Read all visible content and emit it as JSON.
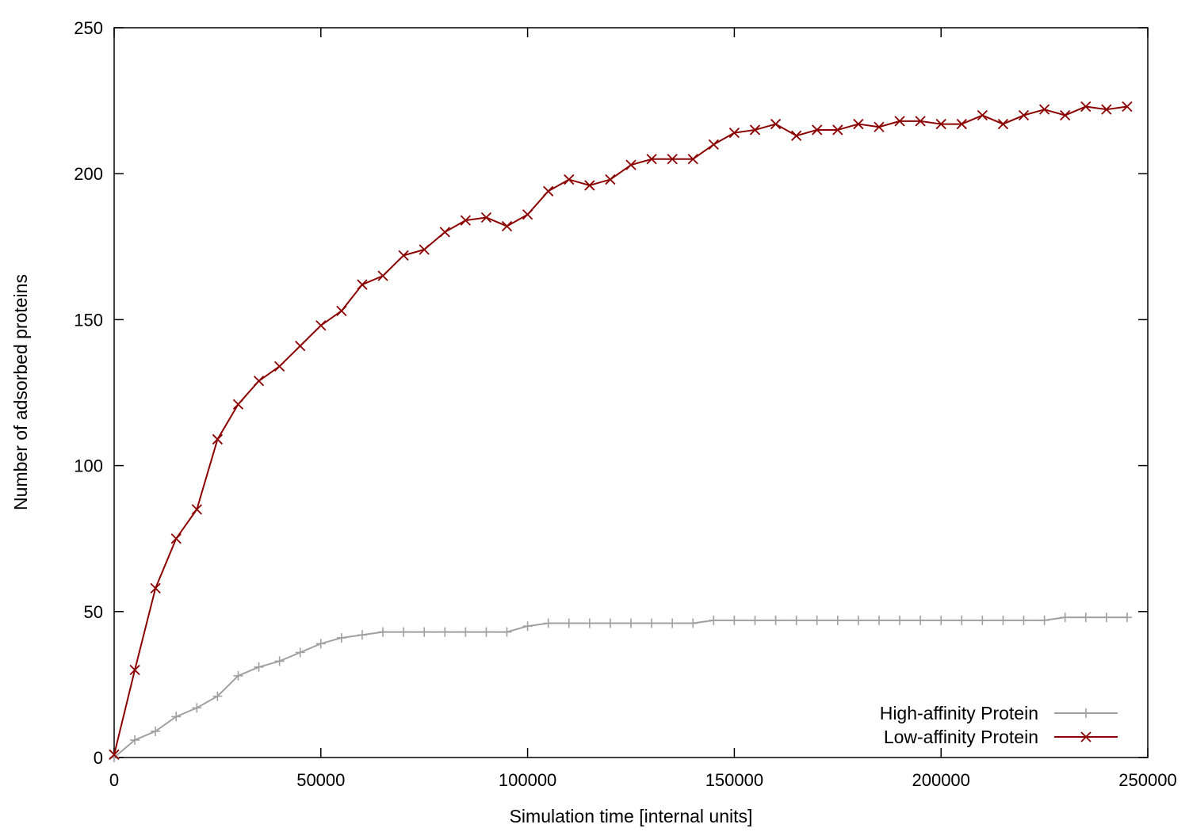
{
  "chart_data": {
    "type": "line",
    "title": "",
    "xlabel": "Simulation time [internal units]",
    "ylabel": "Number of adsorbed proteins",
    "xlim": [
      0,
      250000
    ],
    "ylim": [
      0,
      250
    ],
    "xticks": [
      0,
      50000,
      100000,
      150000,
      200000,
      250000
    ],
    "yticks": [
      0,
      50,
      100,
      150,
      200,
      250
    ],
    "grid": false,
    "legend": "bottom-right",
    "x": [
      0,
      5000,
      10000,
      15000,
      20000,
      25000,
      30000,
      35000,
      40000,
      45000,
      50000,
      55000,
      60000,
      65000,
      70000,
      75000,
      80000,
      85000,
      90000,
      95000,
      100000,
      105000,
      110000,
      115000,
      120000,
      125000,
      130000,
      135000,
      140000,
      145000,
      150000,
      155000,
      160000,
      165000,
      170000,
      175000,
      180000,
      185000,
      190000,
      195000,
      200000,
      205000,
      210000,
      215000,
      220000,
      225000,
      230000,
      235000,
      240000,
      245000
    ],
    "series": [
      {
        "name": "High-affinity Protein",
        "color": "#a0a0a0",
        "marker": "plus",
        "values": [
          0,
          6,
          9,
          14,
          17,
          21,
          28,
          31,
          33,
          36,
          39,
          41,
          42,
          43,
          43,
          43,
          43,
          43,
          43,
          43,
          45,
          46,
          46,
          46,
          46,
          46,
          46,
          46,
          46,
          47,
          47,
          47,
          47,
          47,
          47,
          47,
          47,
          47,
          47,
          47,
          47,
          47,
          47,
          47,
          47,
          47,
          48,
          48,
          48,
          48
        ]
      },
      {
        "name": "Low-affinity Protein",
        "color": "#8b0000",
        "marker": "cross",
        "values": [
          1,
          30,
          58,
          75,
          85,
          109,
          121,
          129,
          134,
          141,
          148,
          153,
          162,
          165,
          172,
          174,
          180,
          184,
          185,
          182,
          186,
          194,
          198,
          196,
          198,
          203,
          205,
          205,
          205,
          210,
          214,
          215,
          217,
          213,
          215,
          215,
          217,
          216,
          218,
          218,
          217,
          217,
          220,
          217,
          220,
          222,
          220,
          223,
          222,
          223
        ]
      }
    ]
  }
}
